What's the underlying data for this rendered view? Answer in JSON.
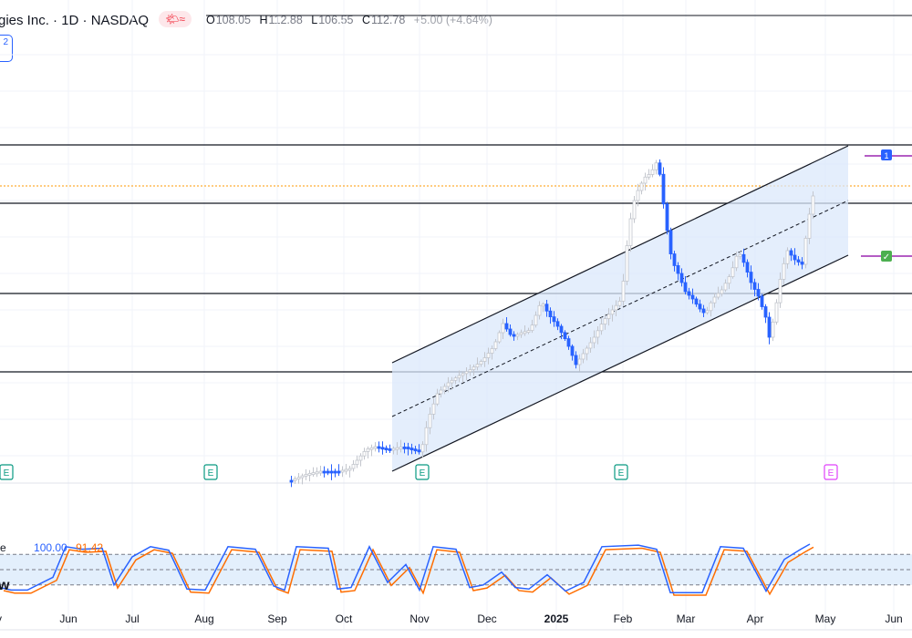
{
  "header": {
    "title": "gies Inc. · 1D · NASDAQ",
    "weather_icons": "🌤≈",
    "ohlc": {
      "o_label": "O",
      "o": "108.05",
      "h_label": "H",
      "h": "112.88",
      "l_label": "L",
      "l": "106.55",
      "c_label": "C",
      "c": "112.78",
      "change": "+5.00 (+4.64%)"
    },
    "badge": "2"
  },
  "indicator": {
    "name": "e",
    "k_value": "100.00",
    "d_value": "91.42",
    "pane_label": "w"
  },
  "colors": {
    "up_candle": "#c3c6cd",
    "down_candle": "#2962ff",
    "channel_fill": "#dbe8fb",
    "k_line": "#2962ff",
    "d_line": "#ff6d00",
    "earnings": "#089981",
    "earnings_future": "#e040fb",
    "price_dotted": "#ff9800"
  },
  "chart_data": {
    "type": "candlestick",
    "x_labels": [
      "y",
      "Jun",
      "Jul",
      "Aug",
      "Sep",
      "Oct",
      "Nov",
      "Dec",
      "2025",
      "Feb",
      "Mar",
      "Apr",
      "May",
      "Jun"
    ],
    "earnings_marker": "E",
    "alert_markers": [
      "1",
      "✓"
    ],
    "stochastic_levels": [
      80,
      50,
      20
    ]
  }
}
